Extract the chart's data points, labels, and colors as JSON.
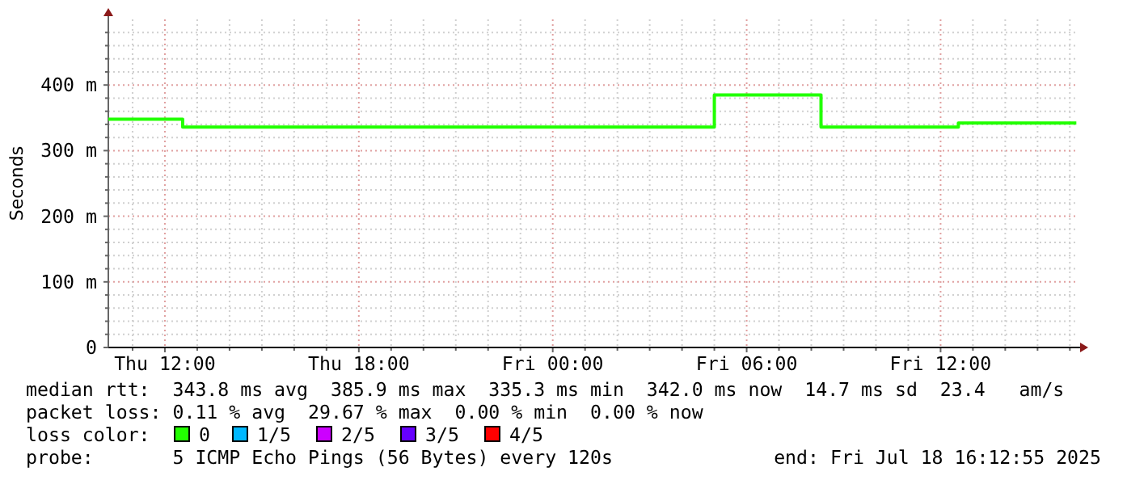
{
  "chart_data": {
    "type": "step",
    "ylabel": "Seconds",
    "legend_title": "loss color:",
    "legend": "bottom",
    "grid": true,
    "x": [
      "2025-07-17T10:15",
      "2025-07-17T12:33",
      "2025-07-18T05:00",
      "2025-07-18T08:18",
      "2025-07-18T12:33",
      "2025-07-18T16:12"
    ],
    "series": [
      {
        "name": "0",
        "color": "#22ff00",
        "values": [
          348,
          336,
          385,
          336,
          342,
          342
        ]
      },
      {
        "name": "1/5",
        "color": "#00b8ff",
        "values": [
          null,
          null,
          null,
          null,
          null,
          null
        ]
      },
      {
        "name": "2/5",
        "color": "#cc00ff",
        "values": [
          null,
          null,
          null,
          null,
          null,
          null
        ]
      },
      {
        "name": "3/5",
        "color": "#6600ff",
        "values": [
          null,
          null,
          null,
          null,
          null,
          null
        ]
      },
      {
        "name": "4/5",
        "color": "#ff0000",
        "values": [
          null,
          null,
          null,
          null,
          null,
          null
        ]
      }
    ],
    "xlim": [
      "2025-07-17T10:15",
      "2025-07-18T16:13"
    ],
    "xticks": [
      {
        "value": "2025-07-17T11:00",
        "label": null
      },
      {
        "value": "2025-07-17T12:00",
        "label": "Thu 12:00"
      },
      {
        "value": "2025-07-17T13:00",
        "label": null
      },
      {
        "value": "2025-07-17T14:00",
        "label": null
      },
      {
        "value": "2025-07-17T15:00",
        "label": null
      },
      {
        "value": "2025-07-17T16:00",
        "label": null
      },
      {
        "value": "2025-07-17T17:00",
        "label": null
      },
      {
        "value": "2025-07-17T18:00",
        "label": "Thu 18:00"
      },
      {
        "value": "2025-07-17T19:00",
        "label": null
      },
      {
        "value": "2025-07-17T20:00",
        "label": null
      },
      {
        "value": "2025-07-17T21:00",
        "label": null
      },
      {
        "value": "2025-07-17T22:00",
        "label": null
      },
      {
        "value": "2025-07-17T23:00",
        "label": null
      },
      {
        "value": "2025-07-18T00:00",
        "label": "Fri 00:00"
      },
      {
        "value": "2025-07-18T01:00",
        "label": null
      },
      {
        "value": "2025-07-18T02:00",
        "label": null
      },
      {
        "value": "2025-07-18T03:00",
        "label": null
      },
      {
        "value": "2025-07-18T04:00",
        "label": null
      },
      {
        "value": "2025-07-18T05:00",
        "label": null
      },
      {
        "value": "2025-07-18T06:00",
        "label": "Fri 06:00"
      },
      {
        "value": "2025-07-18T07:00",
        "label": null
      },
      {
        "value": "2025-07-18T08:00",
        "label": null
      },
      {
        "value": "2025-07-18T09:00",
        "label": null
      },
      {
        "value": "2025-07-18T10:00",
        "label": null
      },
      {
        "value": "2025-07-18T11:00",
        "label": null
      },
      {
        "value": "2025-07-18T12:00",
        "label": "Fri 12:00"
      },
      {
        "value": "2025-07-18T13:00",
        "label": null
      },
      {
        "value": "2025-07-18T14:00",
        "label": null
      },
      {
        "value": "2025-07-18T15:00",
        "label": null
      },
      {
        "value": "2025-07-18T16:00",
        "label": null
      }
    ],
    "ylim": [
      0,
      500
    ],
    "yticks": [
      {
        "value": 0,
        "label": "0"
      },
      {
        "value": 20,
        "label": null
      },
      {
        "value": 40,
        "label": null
      },
      {
        "value": 60,
        "label": null
      },
      {
        "value": 80,
        "label": null
      },
      {
        "value": 100,
        "label": "100 m"
      },
      {
        "value": 120,
        "label": null
      },
      {
        "value": 140,
        "label": null
      },
      {
        "value": 160,
        "label": null
      },
      {
        "value": 180,
        "label": null
      },
      {
        "value": 200,
        "label": "200 m"
      },
      {
        "value": 220,
        "label": null
      },
      {
        "value": 240,
        "label": null
      },
      {
        "value": 260,
        "label": null
      },
      {
        "value": 280,
        "label": null
      },
      {
        "value": 300,
        "label": "300 m"
      },
      {
        "value": 320,
        "label": null
      },
      {
        "value": 340,
        "label": null
      },
      {
        "value": 360,
        "label": null
      },
      {
        "value": 380,
        "label": null
      },
      {
        "value": 400,
        "label": "400 m"
      },
      {
        "value": 420,
        "label": null
      },
      {
        "value": 440,
        "label": null
      },
      {
        "value": 460,
        "label": null
      },
      {
        "value": 480,
        "label": null
      }
    ],
    "annotations": [
      "median rtt:  343.8 ms avg  385.9 ms max  335.3 ms min  342.0 ms now  14.7 ms sd  23.4   am/s",
      "packet loss: 0.11 % avg  29.67 % max  0.00 % min  0.00 % now",
      "probe:       5 ICMP Echo Pings (56 Bytes) every 120s",
      "end: Fri Jul 18 16:12:55 2025"
    ]
  }
}
